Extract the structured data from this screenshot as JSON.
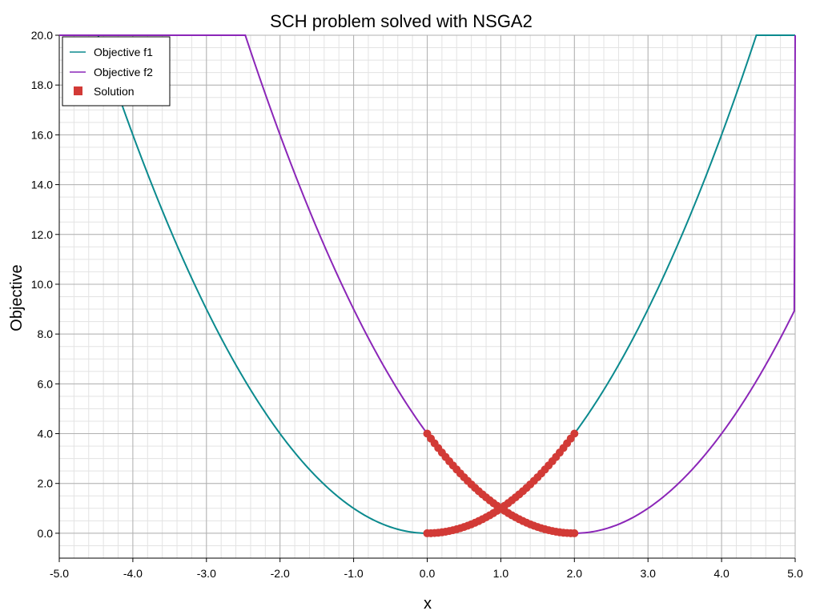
{
  "chart_data": {
    "type": "line",
    "title": "SCH problem solved with NSGA2",
    "xlabel": "x",
    "ylabel": "Objective",
    "xlim": [
      -5.0,
      5.0
    ],
    "ylim": [
      -1.0,
      20.0
    ],
    "x_ticks": [
      "-5.0",
      "-4.0",
      "-3.0",
      "-2.0",
      "-1.0",
      "0.0",
      "1.0",
      "2.0",
      "3.0",
      "4.0",
      "5.0"
    ],
    "y_ticks": [
      "0.0",
      "2.0",
      "4.0",
      "6.0",
      "8.0",
      "10.0",
      "12.0",
      "14.0",
      "16.0",
      "18.0",
      "20.0"
    ],
    "grid": true,
    "legend_position": "top-left",
    "series": [
      {
        "name": "Objective f1",
        "kind": "line",
        "color": "#0b8a8e",
        "x": [
          -5.0,
          -4.47,
          -4.25,
          -4.0,
          -3.5,
          -3.0,
          -2.5,
          -2.0,
          -1.5,
          -1.0,
          -0.5,
          0.0,
          0.5,
          1.0,
          1.5,
          2.0,
          2.5,
          3.0,
          3.5,
          4.0,
          4.25,
          4.47,
          5.0
        ],
        "y": [
          20.0,
          20.0,
          18.06,
          16.0,
          12.25,
          9.0,
          6.25,
          4.0,
          2.25,
          1.0,
          0.25,
          0.0,
          0.25,
          1.0,
          2.25,
          4.0,
          6.25,
          9.0,
          12.25,
          16.0,
          18.06,
          20.0,
          20.0
        ]
      },
      {
        "name": "Objective f2",
        "kind": "line",
        "color": "#8b26b8",
        "x": [
          -5.0,
          -2.47,
          -2.0,
          -1.5,
          -1.0,
          -0.5,
          0.0,
          0.5,
          1.0,
          1.5,
          2.0,
          2.5,
          3.0,
          3.5,
          4.0,
          4.5,
          5.0,
          5.0
        ],
        "y": [
          20.0,
          20.0,
          16.0,
          12.25,
          9.0,
          6.25,
          4.0,
          2.25,
          1.0,
          0.25,
          0.0,
          0.25,
          1.0,
          2.25,
          4.0,
          6.25,
          9.0,
          20.0
        ]
      },
      {
        "name": "Solution",
        "kind": "scatter",
        "color": "#d23a36",
        "points": [
          [
            0.0,
            0.0
          ],
          [
            0.05,
            0.0025
          ],
          [
            0.1,
            0.01
          ],
          [
            0.15,
            0.0225
          ],
          [
            0.2,
            0.04
          ],
          [
            0.25,
            0.0625
          ],
          [
            0.3,
            0.09
          ],
          [
            0.35,
            0.1225
          ],
          [
            0.4,
            0.16
          ],
          [
            0.45,
            0.2025
          ],
          [
            0.5,
            0.25
          ],
          [
            0.55,
            0.3025
          ],
          [
            0.6,
            0.36
          ],
          [
            0.65,
            0.4225
          ],
          [
            0.7,
            0.49
          ],
          [
            0.75,
            0.5625
          ],
          [
            0.8,
            0.64
          ],
          [
            0.85,
            0.7225
          ],
          [
            0.9,
            0.81
          ],
          [
            0.95,
            0.9025
          ],
          [
            1.0,
            1.0
          ],
          [
            1.05,
            1.1025
          ],
          [
            1.1,
            1.21
          ],
          [
            1.15,
            1.3225
          ],
          [
            1.2,
            1.44
          ],
          [
            1.25,
            1.5625
          ],
          [
            1.3,
            1.69
          ],
          [
            1.35,
            1.8225
          ],
          [
            1.4,
            1.96
          ],
          [
            1.45,
            2.1025
          ],
          [
            1.5,
            2.25
          ],
          [
            1.55,
            2.4025
          ],
          [
            1.6,
            2.56
          ],
          [
            1.65,
            2.7225
          ],
          [
            1.7,
            2.89
          ],
          [
            1.75,
            3.0625
          ],
          [
            1.8,
            3.24
          ],
          [
            1.85,
            3.4225
          ],
          [
            1.9,
            3.61
          ],
          [
            1.95,
            3.8025
          ],
          [
            2.0,
            4.0
          ],
          [
            0.0,
            4.0
          ],
          [
            0.05,
            3.8025
          ],
          [
            0.1,
            3.61
          ],
          [
            0.15,
            3.4225
          ],
          [
            0.2,
            3.24
          ],
          [
            0.25,
            3.0625
          ],
          [
            0.3,
            2.89
          ],
          [
            0.35,
            2.7225
          ],
          [
            0.4,
            2.56
          ],
          [
            0.45,
            2.4025
          ],
          [
            0.5,
            2.25
          ],
          [
            0.55,
            2.1025
          ],
          [
            0.6,
            1.96
          ],
          [
            0.65,
            1.8225
          ],
          [
            0.7,
            1.69
          ],
          [
            0.75,
            1.5625
          ],
          [
            0.8,
            1.44
          ],
          [
            0.85,
            1.3225
          ],
          [
            0.9,
            1.21
          ],
          [
            0.95,
            1.1025
          ],
          [
            1.05,
            0.9025
          ],
          [
            1.1,
            0.81
          ],
          [
            1.15,
            0.7225
          ],
          [
            1.2,
            0.64
          ],
          [
            1.25,
            0.5625
          ],
          [
            1.3,
            0.49
          ],
          [
            1.35,
            0.4225
          ],
          [
            1.4,
            0.36
          ],
          [
            1.45,
            0.3025
          ],
          [
            1.5,
            0.25
          ],
          [
            1.55,
            0.2025
          ],
          [
            1.6,
            0.16
          ],
          [
            1.65,
            0.1225
          ],
          [
            1.7,
            0.09
          ],
          [
            1.75,
            0.0625
          ],
          [
            1.8,
            0.04
          ],
          [
            1.85,
            0.0225
          ],
          [
            1.9,
            0.01
          ],
          [
            1.95,
            0.0025
          ],
          [
            2.0,
            0.0
          ]
        ]
      }
    ]
  }
}
